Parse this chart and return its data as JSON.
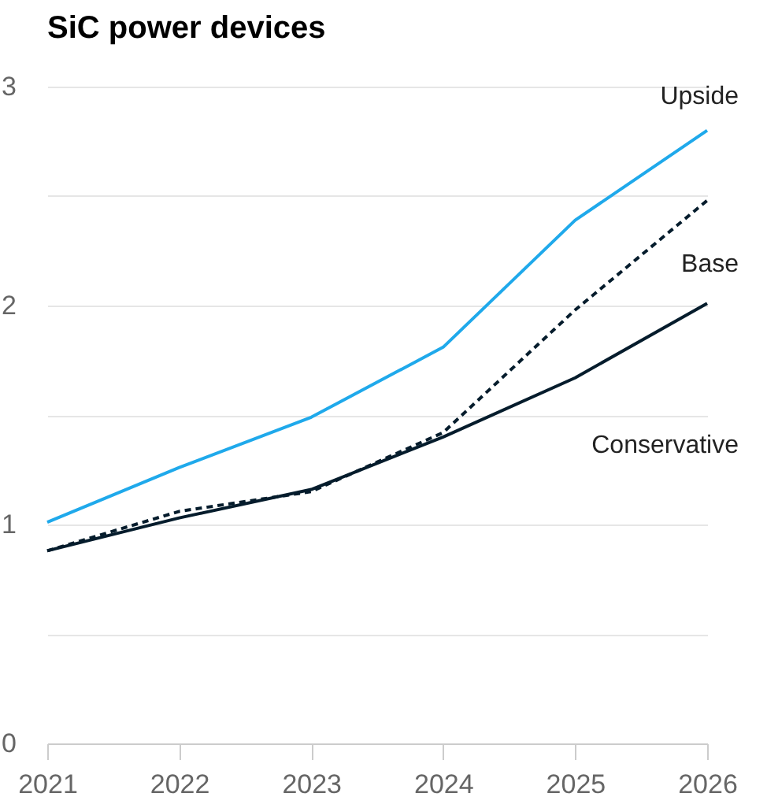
{
  "chart_data": {
    "type": "line",
    "title": "SiC power devices",
    "x": [
      2021,
      2022,
      2023,
      2024,
      2025,
      2026
    ],
    "series": [
      {
        "name": "Upside",
        "color": "#1fa9eb",
        "line_style": "solid",
        "values": [
          1.01,
          1.26,
          1.49,
          1.81,
          2.39,
          2.8
        ]
      },
      {
        "name": "Base",
        "color": "#051c2c",
        "line_style": "dashed",
        "values": [
          0.88,
          1.06,
          1.15,
          1.42,
          1.98,
          2.48
        ]
      },
      {
        "name": "Conservative",
        "color": "#051c2c",
        "line_style": "solid",
        "values": [
          0.88,
          1.03,
          1.16,
          1.4,
          1.67,
          2.01
        ]
      }
    ],
    "xlim": [
      2021,
      2026
    ],
    "xticks": [
      2021,
      2022,
      2023,
      2024,
      2025,
      2026
    ],
    "ylim": [
      0,
      3
    ],
    "yticks": [
      0,
      {
        "value": 0.5,
        "label": null
      },
      1,
      {
        "value": 1.5,
        "label": null
      },
      2,
      {
        "value": 2.5,
        "label": null
      },
      3
    ],
    "grid": "y"
  }
}
